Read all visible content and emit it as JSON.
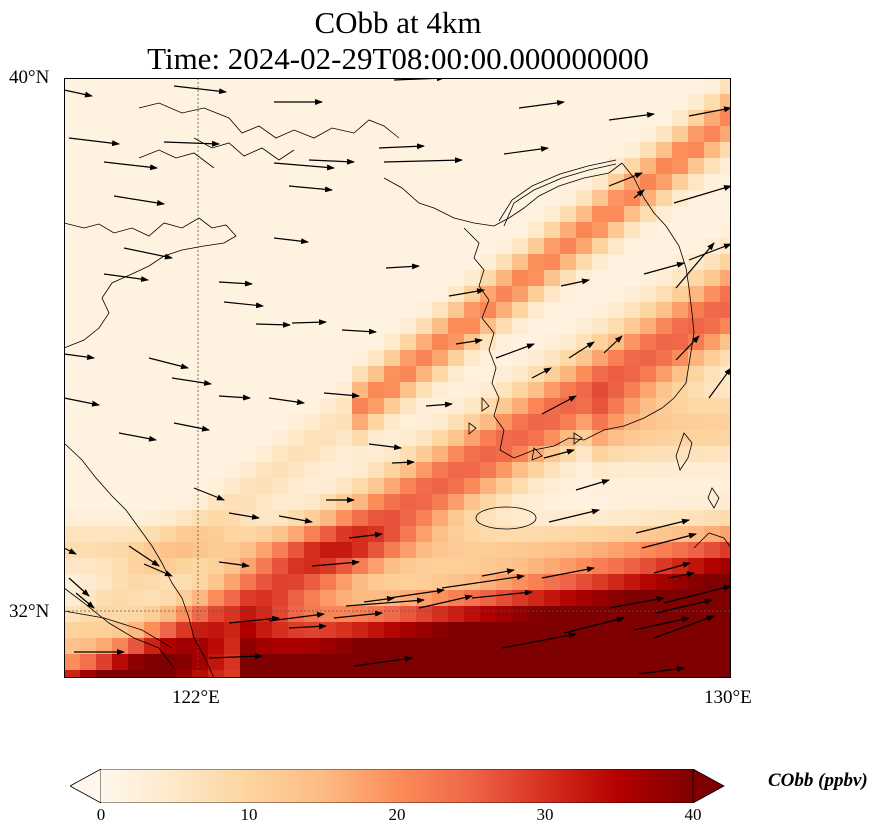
{
  "title_line1": "CObb at 4km",
  "title_line2": "Time: 2024-02-29T08:00:00.000000000",
  "axes": {
    "lat_ticks": [
      {
        "label": "40°N",
        "value": 40
      },
      {
        "label": "32°N",
        "value": 32
      }
    ],
    "lon_ticks": [
      {
        "label": "122°E",
        "value": 122
      },
      {
        "label": "130°E",
        "value": 130
      }
    ],
    "extent": {
      "lon_min": 120,
      "lon_max": 130,
      "lat_min": 31,
      "lat_max": 40
    },
    "gridlines": "dotted"
  },
  "colorbar": {
    "label": "CObb (ppbv)",
    "min": 0,
    "max": 40,
    "ticks": [
      "0",
      "10",
      "20",
      "30",
      "40"
    ],
    "extend": "both",
    "colormap": [
      "#fff7ec",
      "#fee8c8",
      "#fdd49e",
      "#fdbb84",
      "#fc8d59",
      "#ef6548",
      "#d7301f",
      "#b30000",
      "#7f0000"
    ]
  },
  "map_features": [
    "coastlines",
    "country-borders",
    "wind-vectors",
    "filled-concentration-field"
  ]
}
